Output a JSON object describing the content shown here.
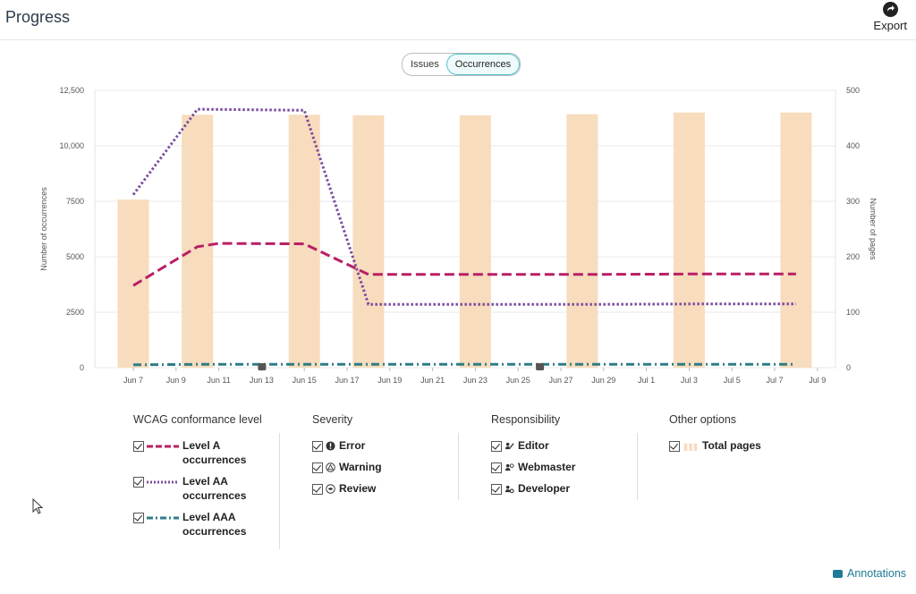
{
  "header": {
    "title": "Progress",
    "export_label": "Export"
  },
  "toggle": {
    "issues_label": "Issues",
    "occurrences_label": "Occurrences",
    "active": "Occurrences"
  },
  "chart_data": {
    "type": "bar+line",
    "x_tick_labels": [
      "Jun 7",
      "Jun 9",
      "Jun 11",
      "Jun 13",
      "Jun 15",
      "Jun 17",
      "Jun 19",
      "Jun 21",
      "Jun 23",
      "Jun 25",
      "Jun 27",
      "Jun 29",
      "Jul 1",
      "Jul 3",
      "Jul 5",
      "Jul 7",
      "Jul 9"
    ],
    "ylabel_left": "Number of occurrences",
    "ylabel_right": "Number of pages",
    "y_left_ticks": [
      "0",
      "2500",
      "5000",
      "7500",
      "10,000",
      "12,500"
    ],
    "y_right_ticks": [
      "0",
      "100",
      "200",
      "300",
      "400",
      "500"
    ],
    "ylim_left": [
      0,
      12500
    ],
    "ylim_right": [
      0,
      500
    ],
    "bars": {
      "name": "Total pages",
      "color": "#f7dcbd",
      "dates": [
        "Jun 7",
        "Jun 10",
        "Jun 15",
        "Jun 18",
        "Jun 23",
        "Jun 28",
        "Jul 3",
        "Jul 8"
      ],
      "values": [
        303,
        456,
        456,
        455,
        455,
        457,
        460,
        460
      ]
    },
    "series": [
      {
        "name": "Level A occurrences",
        "color": "#b81f66",
        "style": "dashed",
        "dates": [
          "Jun 7",
          "Jun 10",
          "Jun 11",
          "Jun 15",
          "Jun 18",
          "Jun 23",
          "Jun 28",
          "Jul 3",
          "Jul 8"
        ],
        "values": [
          3700,
          5450,
          5600,
          5580,
          4200,
          4200,
          4200,
          4220,
          4220
        ]
      },
      {
        "name": "Level AA occurrences",
        "color": "#7b4ca0",
        "style": "dotted",
        "dates": [
          "Jun 7",
          "Jun 10",
          "Jun 15",
          "Jun 18",
          "Jun 23",
          "Jun 28",
          "Jul 3",
          "Jul 8"
        ],
        "values": [
          7800,
          11650,
          11600,
          2850,
          2850,
          2850,
          2870,
          2870
        ]
      },
      {
        "name": "Level AAA occurrences",
        "color": "#2e7d86",
        "style": "dashdot",
        "dates": [
          "Jun 7",
          "Jun 10",
          "Jun 15",
          "Jun 18",
          "Jun 23",
          "Jun 28",
          "Jul 3",
          "Jul 8"
        ],
        "values": [
          130,
          150,
          150,
          150,
          150,
          150,
          150,
          150
        ]
      }
    ],
    "annotation_markers": [
      "Jun 13",
      "Jun 26"
    ],
    "grid": true
  },
  "legend": {
    "wcag": {
      "title": "WCAG conformance level",
      "items": [
        {
          "label": "Level A occurrences",
          "checked": true
        },
        {
          "label": "Level AA occurrences",
          "checked": true
        },
        {
          "label": "Level AAA occurrences",
          "checked": true
        }
      ]
    },
    "severity": {
      "title": "Severity",
      "items": [
        {
          "label": "Error",
          "icon": "error-icon",
          "checked": true
        },
        {
          "label": "Warning",
          "icon": "warning-icon",
          "checked": true
        },
        {
          "label": "Review",
          "icon": "review-icon",
          "checked": true
        }
      ]
    },
    "responsibility": {
      "title": "Responsibility",
      "items": [
        {
          "label": "Editor",
          "icon": "editor-icon",
          "checked": true
        },
        {
          "label": "Webmaster",
          "icon": "webmaster-icon",
          "checked": true
        },
        {
          "label": "Developer",
          "icon": "developer-icon",
          "checked": true
        }
      ]
    },
    "other": {
      "title": "Other options",
      "items": [
        {
          "label": "Total pages",
          "icon": "bars-icon",
          "checked": true
        }
      ]
    }
  },
  "footer": {
    "annotations_label": "Annotations"
  }
}
